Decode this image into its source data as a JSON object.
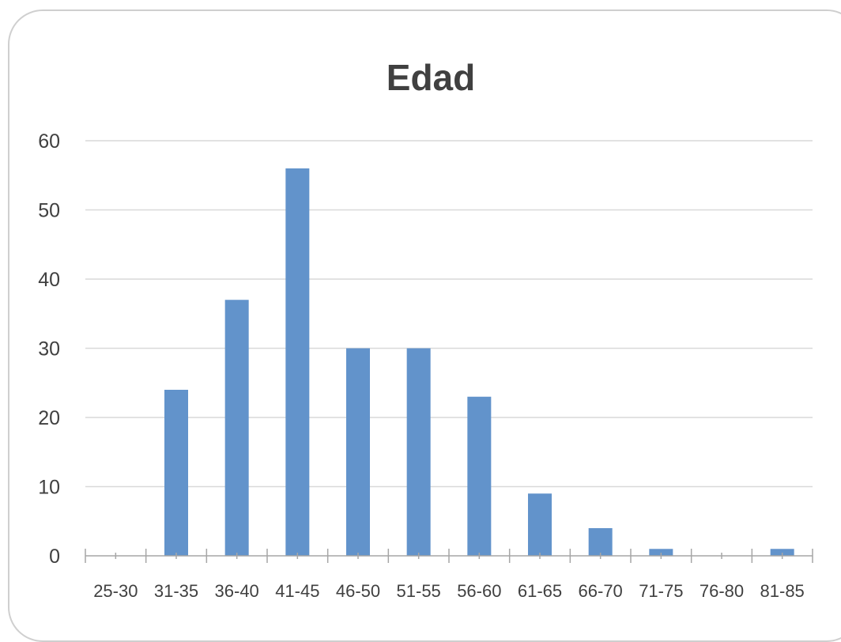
{
  "chart_data": {
    "type": "bar",
    "title": "Edad",
    "xlabel": "",
    "ylabel": "",
    "categories": [
      "25-30",
      "31-35",
      "36-40",
      "41-45",
      "46-50",
      "51-55",
      "56-60",
      "61-65",
      "66-70",
      "71-75",
      "76-80",
      "81-85"
    ],
    "values": [
      0,
      24,
      37,
      56,
      30,
      30,
      23,
      9,
      4,
      1,
      0,
      1
    ],
    "ylim": [
      0,
      60
    ],
    "yticks": [
      0,
      10,
      20,
      30,
      40,
      50,
      60
    ],
    "grid": true,
    "legend": "none",
    "bar_color": "#6293cb"
  }
}
